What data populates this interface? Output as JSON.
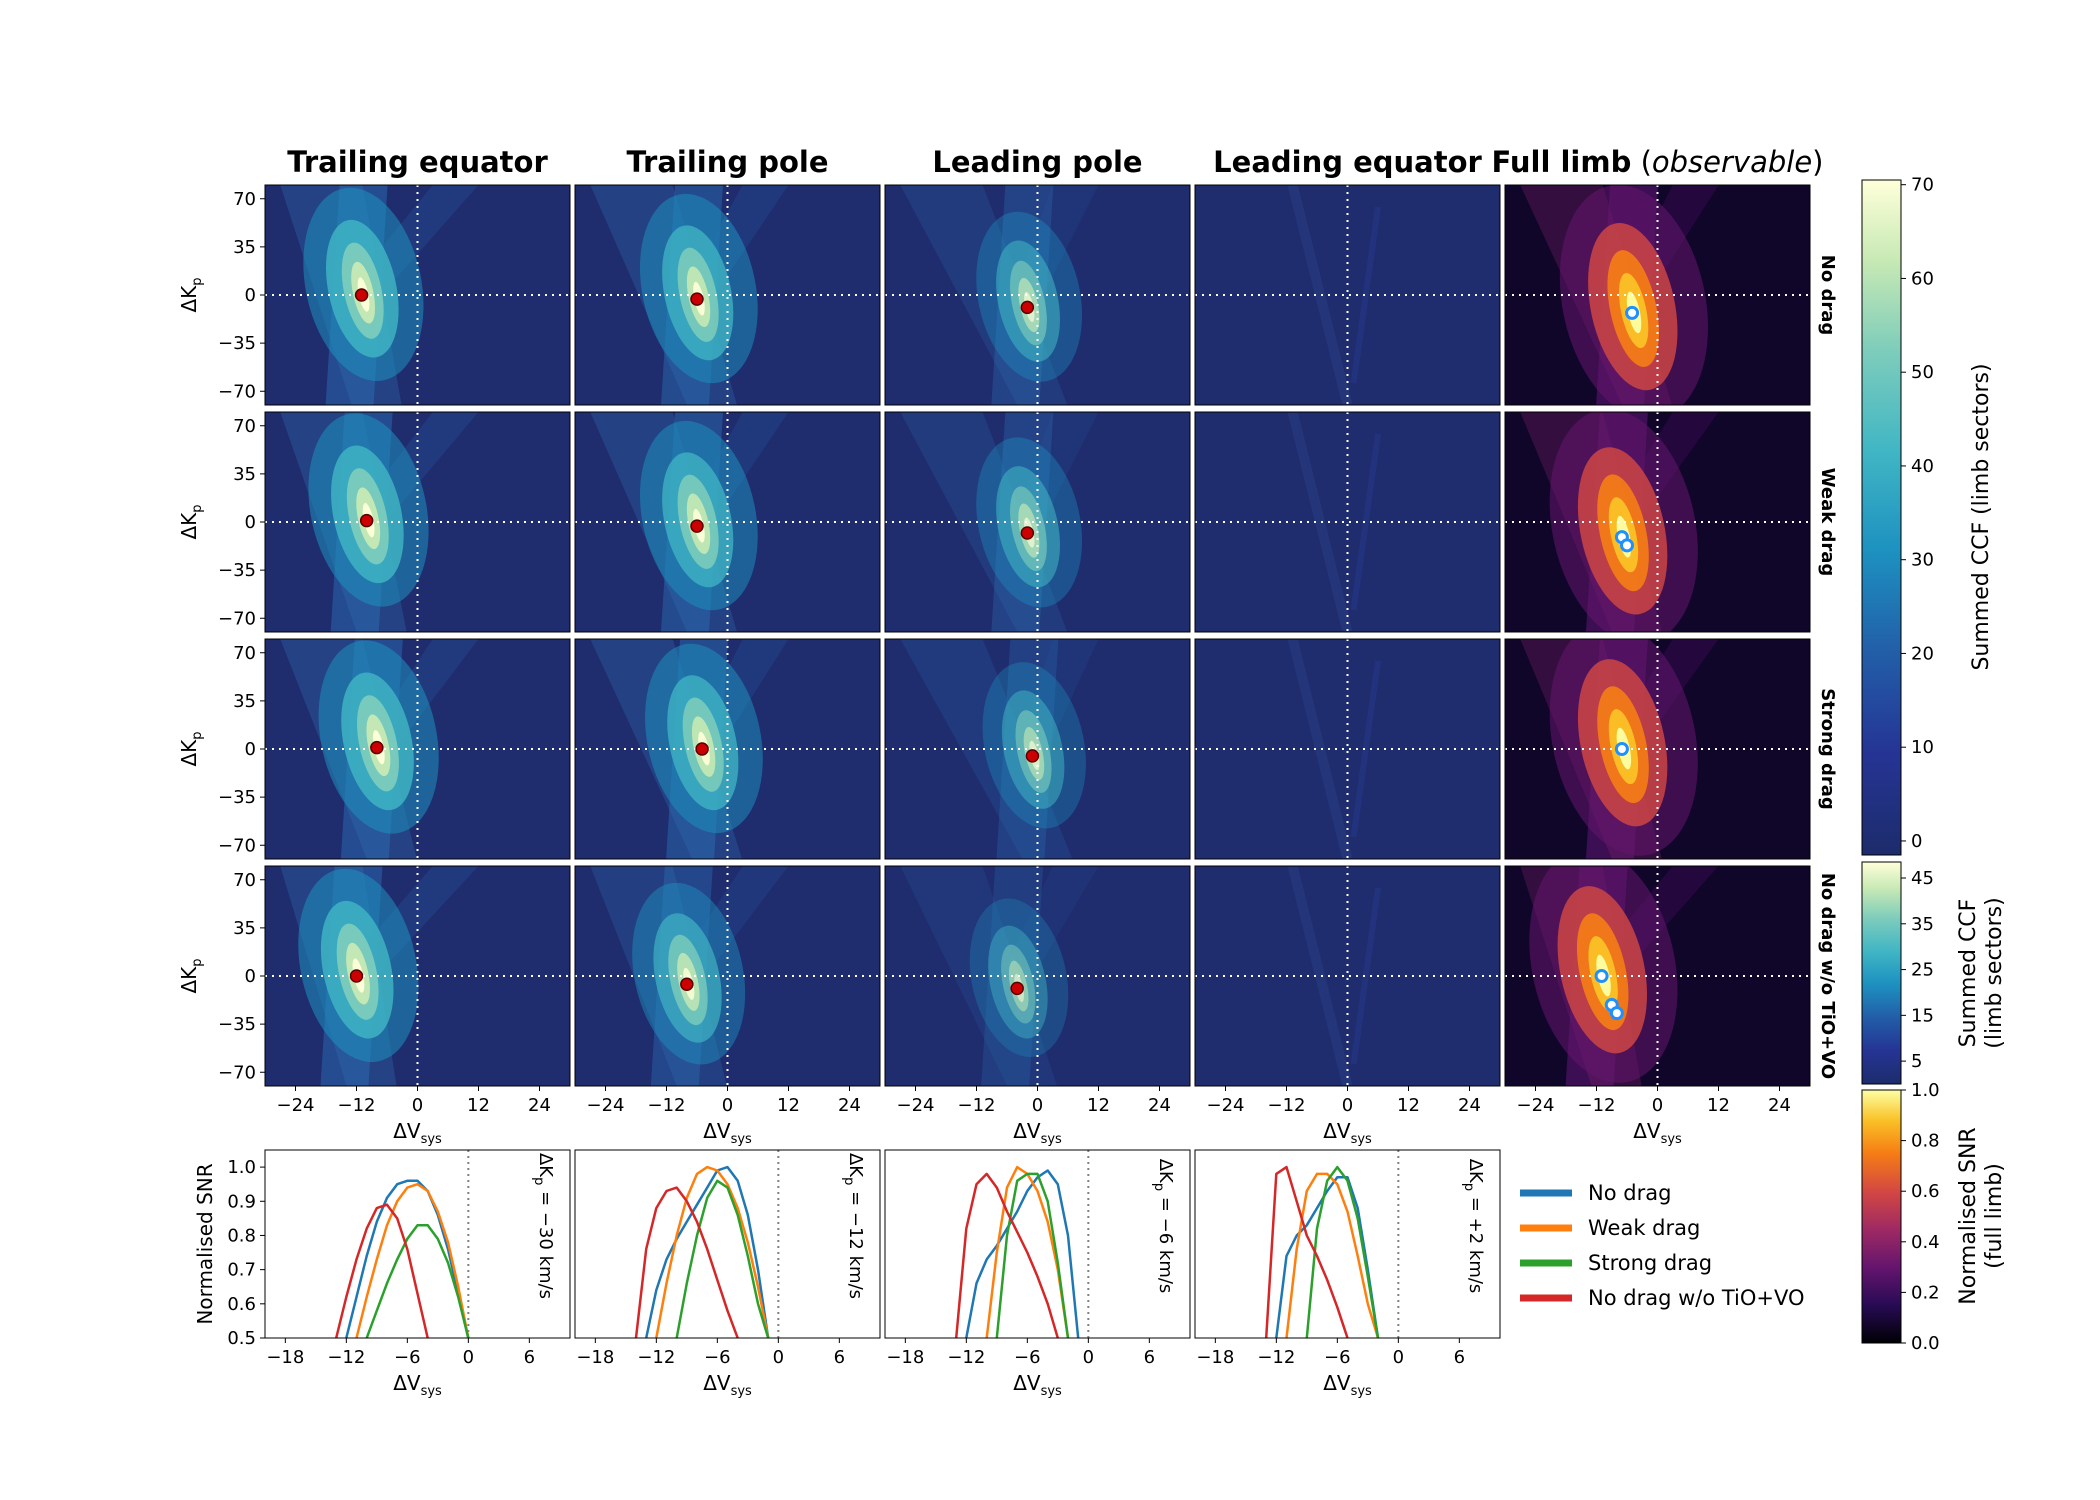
{
  "columns": [
    "Trailing equator",
    "Trailing pole",
    "Leading pole",
    "Leading equator"
  ],
  "full_limb_title": {
    "bold": "Full limb",
    "italic": "observable",
    "open": " (",
    "close": ")"
  },
  "rows": [
    "No drag",
    "Weak drag",
    "Strong drag",
    "No drag w/o TiO+VO"
  ],
  "axes": {
    "map_ylabel": "ΔK",
    "map_ylabel_sub": "p",
    "map_xlabel": "ΔV",
    "map_xlabel_sub": "sys",
    "snr_ylabel": "Normalised SNR",
    "snr_xlabel": "ΔV",
    "snr_xlabel_sub": "sys"
  },
  "map_xticks": [
    "−24",
    "−12",
    "0",
    "12",
    "24"
  ],
  "map_yticks": [
    "70",
    "35",
    "0",
    "−35",
    "−70"
  ],
  "snr_xticks": [
    "−18",
    "−12",
    "−6",
    "0",
    "6"
  ],
  "snr_yticks": [
    "1.0",
    "0.9",
    "0.8",
    "0.7",
    "0.6",
    "0.5"
  ],
  "kp_labels": [
    {
      "pre": "ΔK",
      "sub": "p",
      "post": " = −30 km/s"
    },
    {
      "pre": "ΔK",
      "sub": "p",
      "post": " = −12 km/s"
    },
    {
      "pre": "ΔK",
      "sub": "p",
      "post": " = −6 km/s"
    },
    {
      "pre": "ΔK",
      "sub": "p",
      "post": " = +2 km/s"
    }
  ],
  "colorbars": [
    {
      "label": [
        "Summed CCF (limb sectors)"
      ],
      "ticks": [
        "70",
        "60",
        "50",
        "40",
        "30",
        "20",
        "10",
        "0"
      ]
    },
    {
      "label": [
        "Summed CCF",
        "(limb sectors)"
      ],
      "ticks": [
        "45",
        "35",
        "25",
        "15",
        "5"
      ]
    },
    {
      "label": [
        "Normalised SNR",
        "(full limb)"
      ],
      "ticks": [
        "1.0",
        "0.8",
        "0.6",
        "0.4",
        "0.2",
        "0.0"
      ]
    }
  ],
  "colors": {
    "No drag": "#1f77b4",
    "Weak drag": "#ff7f0e",
    "Strong drag": "#2ca02c",
    "No drag w/o TiO+VO": "#d62728",
    "row_label": "#ff0000",
    "peak_marker": "#cc0000",
    "full_limb_marker": "#1e90ff"
  },
  "legend": [
    "No drag",
    "Weak drag",
    "Strong drag",
    "No drag w/o TiO+VO"
  ],
  "chart_data": [
    {
      "type": "heatmap",
      "description_x": "ΔV_sys",
      "xlim": [
        -30,
        30
      ],
      "ylim": [
        -80,
        80
      ],
      "colormap_sectors": "YlGnBu_r",
      "colormap_full_limb": "inferno",
      "colorbar_ranges": {
        "rows_1_3": [
          0,
          70
        ],
        "row_4": [
          0,
          48
        ],
        "full_limb_snr": [
          0,
          1
        ]
      },
      "peaks_sector": [
        [
          [
            -11,
            0
          ],
          [
            -6,
            -3
          ],
          [
            -2,
            -9
          ],
          null
        ],
        [
          [
            -10,
            1
          ],
          [
            -6,
            -3
          ],
          [
            -2,
            -8
          ],
          null
        ],
        [
          [
            -8,
            1
          ],
          [
            -5,
            0
          ],
          [
            -1,
            -5
          ],
          null
        ],
        [
          [
            -12,
            0
          ],
          [
            -8,
            -6
          ],
          [
            -4,
            -9
          ],
          null
        ]
      ],
      "peaks_full_limb": [
        [
          [
            -5,
            -13
          ]
        ],
        [
          [
            -7,
            -11
          ],
          [
            -6,
            -17
          ]
        ],
        [
          [
            -7,
            0
          ]
        ],
        [
          [
            -11,
            0
          ],
          [
            -9,
            -21
          ],
          [
            -8,
            -27
          ]
        ]
      ]
    },
    {
      "type": "line",
      "xlabel": "ΔV_sys",
      "ylabel": "Normalised SNR",
      "xlim": [
        -20,
        10
      ],
      "ylim": [
        0.5,
        1.05
      ],
      "panels": [
        {
          "kp": -30,
          "series": [
            {
              "name": "No drag",
              "x": [
                -12,
                -11,
                -10,
                -9,
                -8,
                -7,
                -6,
                -5,
                -4,
                -3,
                -2,
                -1,
                0
              ],
              "y": [
                0.5,
                0.62,
                0.74,
                0.84,
                0.91,
                0.95,
                0.96,
                0.96,
                0.93,
                0.86,
                0.76,
                0.63,
                0.5
              ]
            },
            {
              "name": "Weak drag",
              "x": [
                -11,
                -10,
                -9,
                -8,
                -7,
                -6,
                -5,
                -4,
                -3,
                -2,
                -1,
                0
              ],
              "y": [
                0.5,
                0.62,
                0.73,
                0.83,
                0.9,
                0.94,
                0.95,
                0.93,
                0.87,
                0.78,
                0.65,
                0.5
              ]
            },
            {
              "name": "Strong drag",
              "x": [
                -10,
                -9,
                -8,
                -7,
                -6,
                -5,
                -4,
                -3,
                -2,
                -1,
                0
              ],
              "y": [
                0.5,
                0.58,
                0.66,
                0.73,
                0.79,
                0.83,
                0.83,
                0.79,
                0.72,
                0.62,
                0.5
              ]
            },
            {
              "name": "No drag w/o TiO+VO",
              "x": [
                -13,
                -12,
                -11,
                -10,
                -9,
                -8,
                -7,
                -6,
                -5,
                -4
              ],
              "y": [
                0.5,
                0.62,
                0.73,
                0.82,
                0.88,
                0.89,
                0.85,
                0.76,
                0.63,
                0.5
              ]
            }
          ]
        },
        {
          "kp": -12,
          "series": [
            {
              "name": "No drag",
              "x": [
                -13,
                -12,
                -11,
                -10,
                -9,
                -8,
                -7,
                -6,
                -5,
                -4,
                -3,
                -2,
                -1
              ],
              "y": [
                0.5,
                0.64,
                0.73,
                0.79,
                0.84,
                0.89,
                0.94,
                0.99,
                1.0,
                0.96,
                0.86,
                0.7,
                0.5
              ]
            },
            {
              "name": "Weak drag",
              "x": [
                -12,
                -11,
                -10,
                -9,
                -8,
                -7,
                -6,
                -5,
                -4,
                -3,
                -2,
                -1
              ],
              "y": [
                0.5,
                0.66,
                0.8,
                0.91,
                0.98,
                1.0,
                0.99,
                0.95,
                0.88,
                0.78,
                0.65,
                0.5
              ]
            },
            {
              "name": "Strong drag",
              "x": [
                -10,
                -9,
                -8,
                -7,
                -6,
                -5,
                -4,
                -3,
                -2,
                -1
              ],
              "y": [
                0.5,
                0.66,
                0.8,
                0.91,
                0.96,
                0.94,
                0.86,
                0.74,
                0.6,
                0.5
              ]
            },
            {
              "name": "No drag w/o TiO+VO",
              "x": [
                -14,
                -13,
                -12,
                -11,
                -10,
                -9,
                -8,
                -7,
                -6,
                -5,
                -4
              ],
              "y": [
                0.5,
                0.76,
                0.88,
                0.93,
                0.94,
                0.9,
                0.84,
                0.76,
                0.67,
                0.58,
                0.5
              ]
            }
          ]
        },
        {
          "kp": -6,
          "series": [
            {
              "name": "No drag",
              "x": [
                -12,
                -11,
                -10,
                -9,
                -8,
                -7,
                -6,
                -5,
                -4,
                -3,
                -2,
                -1
              ],
              "y": [
                0.5,
                0.66,
                0.73,
                0.77,
                0.82,
                0.87,
                0.93,
                0.97,
                0.99,
                0.95,
                0.8,
                0.5
              ]
            },
            {
              "name": "Weak drag",
              "x": [
                -10,
                -9,
                -8,
                -7,
                -6,
                -5,
                -4,
                -3,
                -2
              ],
              "y": [
                0.5,
                0.75,
                0.94,
                1.0,
                0.98,
                0.93,
                0.84,
                0.7,
                0.5
              ]
            },
            {
              "name": "Strong drag",
              "x": [
                -9,
                -8,
                -7,
                -6,
                -5,
                -4,
                -3,
                -2
              ],
              "y": [
                0.5,
                0.8,
                0.96,
                0.98,
                0.98,
                0.9,
                0.72,
                0.5
              ]
            },
            {
              "name": "No drag w/o TiO+VO",
              "x": [
                -13,
                -12,
                -11,
                -10,
                -9,
                -8,
                -7,
                -6,
                -5,
                -4,
                -3
              ],
              "y": [
                0.5,
                0.82,
                0.95,
                0.98,
                0.94,
                0.87,
                0.81,
                0.75,
                0.68,
                0.6,
                0.5
              ]
            }
          ]
        },
        {
          "kp": 2,
          "series": [
            {
              "name": "No drag",
              "x": [
                -12,
                -11,
                -10,
                -9,
                -8,
                -7,
                -6,
                -5,
                -4,
                -3,
                -2
              ],
              "y": [
                0.5,
                0.74,
                0.8,
                0.83,
                0.88,
                0.93,
                0.97,
                0.97,
                0.88,
                0.7,
                0.5
              ]
            },
            {
              "name": "Weak drag",
              "x": [
                -11,
                -10,
                -9,
                -8,
                -7,
                -6,
                -5,
                -4,
                -3,
                -2
              ],
              "y": [
                0.5,
                0.76,
                0.93,
                0.98,
                0.98,
                0.95,
                0.87,
                0.74,
                0.6,
                0.5
              ]
            },
            {
              "name": "Strong drag",
              "x": [
                -9,
                -8,
                -7,
                -6,
                -5,
                -4,
                -3,
                -2
              ],
              "y": [
                0.5,
                0.82,
                0.96,
                1.0,
                0.96,
                0.85,
                0.68,
                0.5
              ]
            },
            {
              "name": "No drag w/o TiO+VO",
              "x": [
                -13,
                -12,
                -11,
                -10,
                -9,
                -8,
                -7,
                -6,
                -5
              ],
              "y": [
                0.5,
                0.98,
                1.0,
                0.9,
                0.8,
                0.74,
                0.67,
                0.59,
                0.5
              ]
            }
          ]
        }
      ]
    }
  ]
}
